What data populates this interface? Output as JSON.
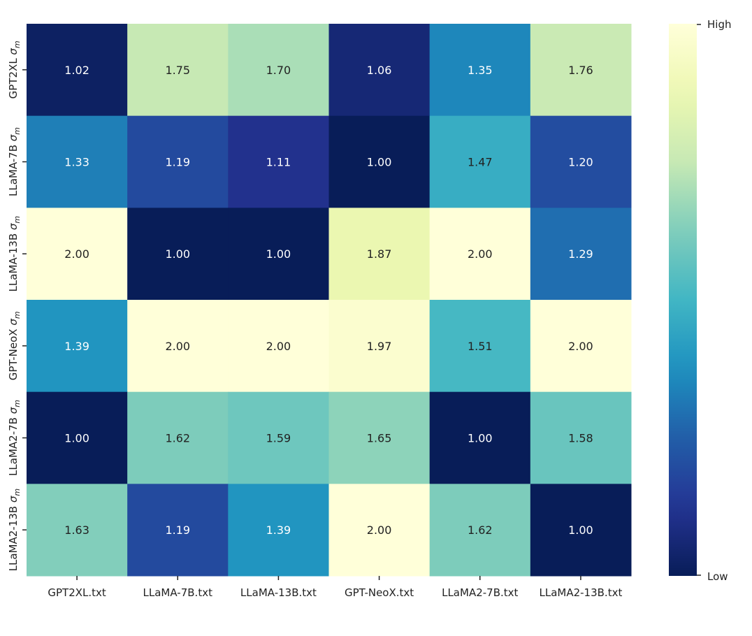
{
  "chart_data": {
    "type": "heatmap",
    "title": "",
    "xlabel": "",
    "ylabel": "",
    "x_categories": [
      "GPT2XL.txt",
      "LLaMA-7B.txt",
      "LLaMA-13B.txt",
      "GPT-NeoX.txt",
      "LLaMA2-7B.txt",
      "LLaMA2-13B.txt"
    ],
    "y_categories": [
      "GPT2XL σm",
      "LLaMA-7B σm",
      "LLaMA-13B σm",
      "GPT-NeoX σm",
      "LLaMA2-7B σm",
      "LLaMA2-13B σm"
    ],
    "y_category_names": [
      "GPT2XL",
      "LLaMA-7B",
      "LLaMA-13B",
      "GPT-NeoX",
      "LLaMA2-7B",
      "LLaMA2-13B"
    ],
    "y_symbol": "σ",
    "y_symbol_subscript": "m",
    "values": [
      [
        1.02,
        1.75,
        1.7,
        1.06,
        1.35,
        1.76
      ],
      [
        1.33,
        1.19,
        1.11,
        1.0,
        1.47,
        1.2
      ],
      [
        2.0,
        1.0,
        1.0,
        1.87,
        2.0,
        1.29
      ],
      [
        1.39,
        2.0,
        2.0,
        1.97,
        1.51,
        2.0
      ],
      [
        1.0,
        1.62,
        1.59,
        1.65,
        1.0,
        1.58
      ],
      [
        1.63,
        1.19,
        1.39,
        2.0,
        1.62,
        1.0
      ]
    ],
    "value_range": [
      1.0,
      2.0
    ],
    "colormap": "YlGnBu",
    "colorbar": {
      "high_label": "High",
      "low_label": "Low",
      "position": "right"
    }
  },
  "colors": {
    "dark_text": "#222222",
    "light_text": "#ffffff"
  }
}
